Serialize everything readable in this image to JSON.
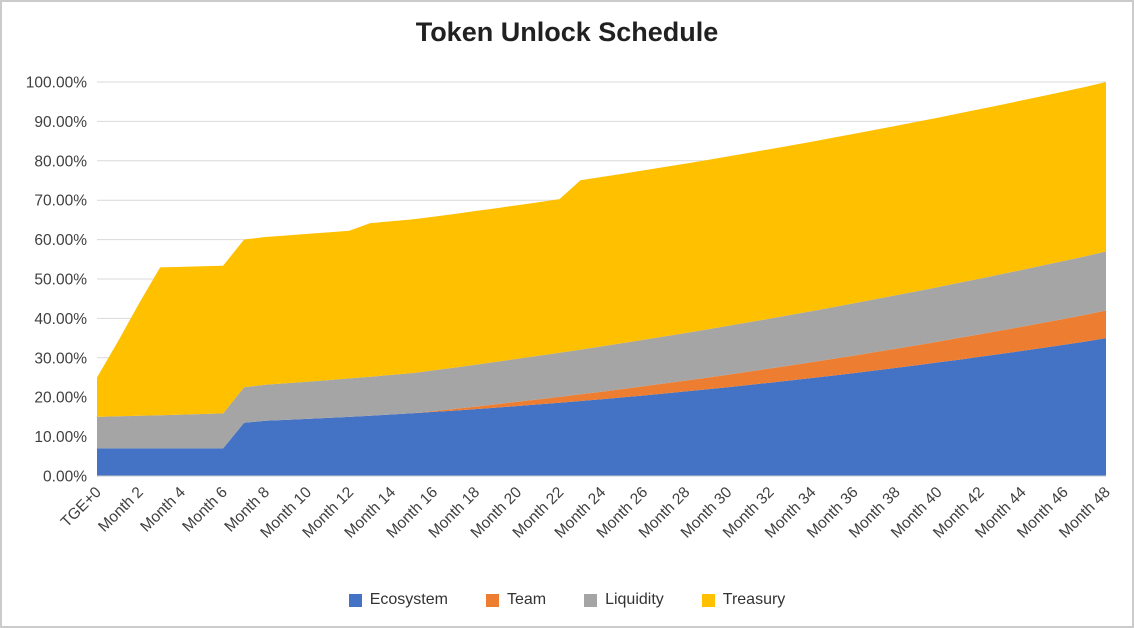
{
  "chart_data": {
    "type": "area",
    "stacked": true,
    "title": "Token Unlock Schedule",
    "xlabel": "",
    "ylabel": "",
    "ylim": [
      0,
      100
    ],
    "grid": true,
    "legend_position": "bottom",
    "grid_color": "#d9d9d9",
    "axis_text_color": "#404040",
    "x_tick_step": 2,
    "y_ticks": [
      "0.00%",
      "10.00%",
      "20.00%",
      "30.00%",
      "40.00%",
      "50.00%",
      "60.00%",
      "70.00%",
      "80.00%",
      "90.00%",
      "100.00%"
    ],
    "x": [
      "TGE+0",
      "Month 1",
      "Month 2",
      "Month 3",
      "Month 4",
      "Month 5",
      "Month 6",
      "Month 7",
      "Month 8",
      "Month 9",
      "Month 10",
      "Month 11",
      "Month 12",
      "Month 13",
      "Month 14",
      "Month 15",
      "Month 16",
      "Month 17",
      "Month 18",
      "Month 19",
      "Month 20",
      "Month 21",
      "Month 22",
      "Month 23",
      "Month 24",
      "Month 25",
      "Month 26",
      "Month 27",
      "Month 28",
      "Month 29",
      "Month 30",
      "Month 31",
      "Month 32",
      "Month 33",
      "Month 34",
      "Month 35",
      "Month 36",
      "Month 37",
      "Month 38",
      "Month 39",
      "Month 40",
      "Month 41",
      "Month 42",
      "Month 43",
      "Month 44",
      "Month 45",
      "Month 46",
      "Month 47",
      "Month 48"
    ],
    "series": [
      {
        "name": "Ecosystem",
        "color": "#4472C4",
        "values": [
          7.0,
          7.0,
          7.0,
          7.0,
          7.0,
          7.0,
          7.0,
          13.5,
          14.0,
          14.23,
          14.48,
          14.74,
          15.01,
          15.3,
          15.61,
          15.93,
          16.26,
          16.61,
          16.98,
          17.36,
          17.76,
          18.17,
          18.59,
          19.03,
          19.49,
          19.96,
          20.44,
          20.94,
          21.46,
          21.99,
          22.54,
          23.1,
          23.67,
          24.26,
          24.87,
          25.49,
          26.12,
          26.77,
          27.44,
          28.12,
          28.82,
          29.53,
          30.25,
          30.99,
          31.75,
          32.52,
          33.3,
          34.1,
          35.0
        ]
      },
      {
        "name": "Team",
        "color": "#ED7D31",
        "values": [
          0,
          0,
          0,
          0,
          0,
          0,
          0,
          0,
          0,
          0,
          0,
          0,
          0,
          0,
          0,
          0,
          0.21,
          0.42,
          0.64,
          0.85,
          1.06,
          1.27,
          1.48,
          1.7,
          1.91,
          2.12,
          2.33,
          2.55,
          2.76,
          2.97,
          3.18,
          3.39,
          3.61,
          3.82,
          4.03,
          4.24,
          4.45,
          4.67,
          4.88,
          5.09,
          5.3,
          5.52,
          5.73,
          5.94,
          6.15,
          6.36,
          6.58,
          6.79,
          7.0
        ]
      },
      {
        "name": "Liquidity",
        "color": "#A5A5A5",
        "values": [
          8.0,
          8.15,
          8.29,
          8.44,
          8.58,
          8.73,
          8.88,
          9.02,
          9.17,
          9.31,
          9.46,
          9.6,
          9.75,
          9.9,
          10.04,
          10.19,
          10.33,
          10.48,
          10.63,
          10.77,
          10.92,
          11.06,
          11.21,
          11.35,
          11.5,
          11.65,
          11.79,
          11.94,
          12.08,
          12.23,
          12.38,
          12.52,
          12.67,
          12.81,
          12.96,
          13.1,
          13.25,
          13.4,
          13.54,
          13.69,
          13.83,
          13.98,
          14.13,
          14.27,
          14.42,
          14.56,
          14.71,
          14.85,
          15.0
        ]
      },
      {
        "name": "Treasury",
        "color": "#FFC000",
        "values": [
          10.0,
          19.0,
          28.5,
          37.5,
          37.5,
          37.5,
          37.5,
          37.5,
          37.5,
          37.5,
          37.5,
          37.5,
          37.5,
          39.0,
          39.0,
          39.0,
          39.0,
          39.0,
          39.0,
          39.0,
          39.0,
          39.0,
          39.0,
          43.0,
          43.0,
          43.0,
          43.0,
          43.0,
          43.0,
          43.0,
          43.0,
          43.0,
          43.0,
          43.0,
          43.0,
          43.0,
          43.0,
          43.0,
          43.0,
          43.0,
          43.0,
          43.0,
          43.0,
          43.0,
          43.0,
          43.0,
          43.0,
          43.0,
          43.0
        ]
      }
    ]
  }
}
